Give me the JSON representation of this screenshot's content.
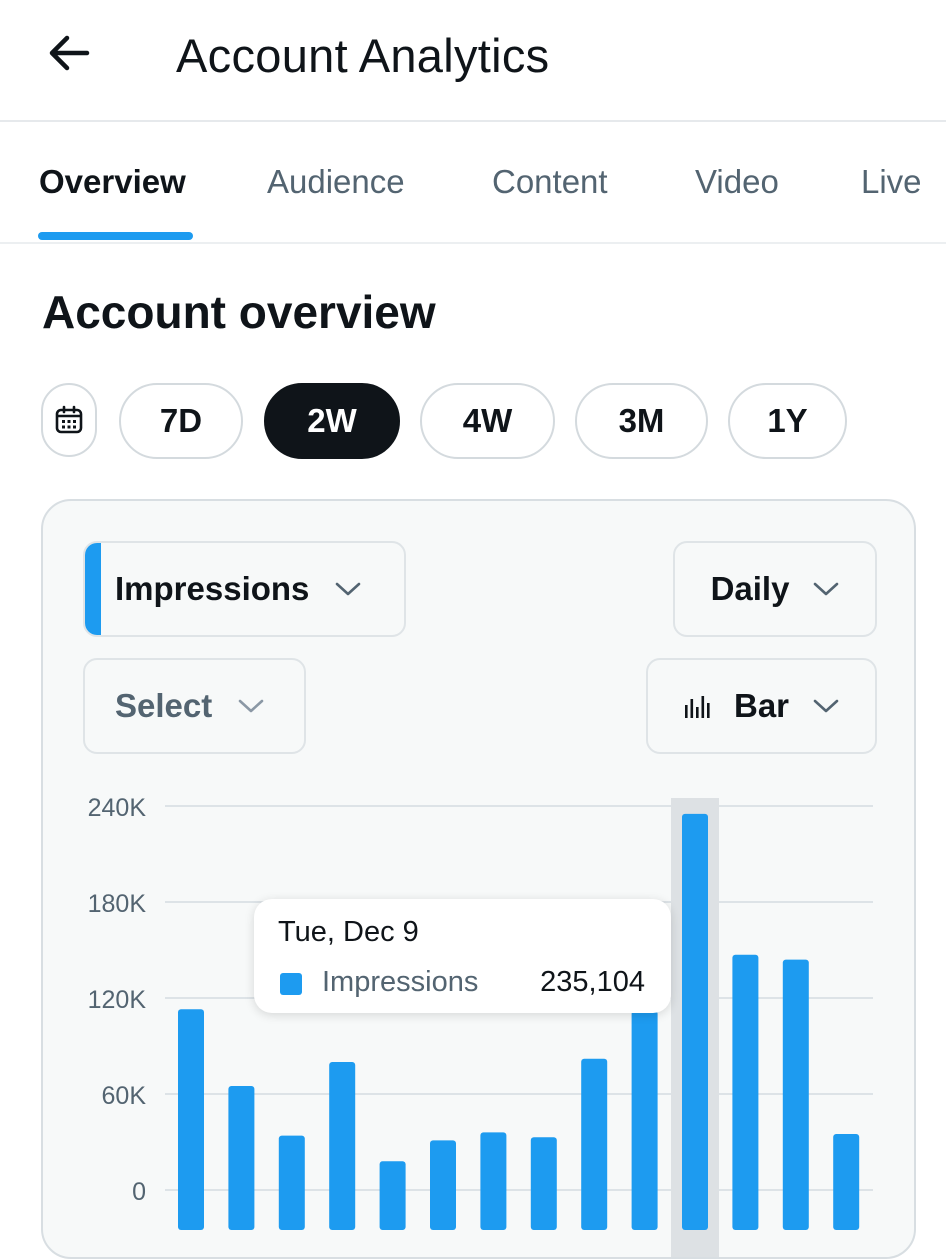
{
  "header": {
    "title": "Account Analytics",
    "back_icon": "arrow-left-icon"
  },
  "tabs": [
    {
      "label": "Overview",
      "active": true
    },
    {
      "label": "Audience",
      "active": false
    },
    {
      "label": "Content",
      "active": false
    },
    {
      "label": "Video",
      "active": false
    },
    {
      "label": "Live",
      "active": false
    }
  ],
  "section": {
    "title": "Account overview"
  },
  "range": {
    "calendar_icon": "calendar-icon",
    "options": [
      "7D",
      "2W",
      "4W",
      "3M",
      "1Y"
    ],
    "selected": "2W"
  },
  "controls": {
    "metric": "Impressions",
    "interval": "Daily",
    "compare": "Select",
    "chart_type": "Bar",
    "chevron_icon": "chevron-down-icon",
    "chart_type_icon": "bar-chart-icon"
  },
  "tooltip": {
    "date": "Tue, Dec 9",
    "series": "Impressions",
    "value": "235,104"
  },
  "colors": {
    "accent": "#1d9bf0",
    "text_primary": "#0f1419",
    "text_secondary": "#536471",
    "highlight_band": "#dde1e4"
  },
  "chart_data": {
    "type": "bar",
    "series": [
      {
        "name": "Impressions",
        "values": [
          113000,
          65000,
          34000,
          80000,
          18000,
          31000,
          36000,
          33000,
          82000,
          112000,
          235104,
          147000,
          144000,
          35000
        ]
      }
    ],
    "highlighted_index": 10,
    "y_ticks": [
      "0",
      "60K",
      "120K",
      "180K",
      "240K"
    ],
    "ylim": [
      0,
      240000
    ],
    "grid": true
  }
}
